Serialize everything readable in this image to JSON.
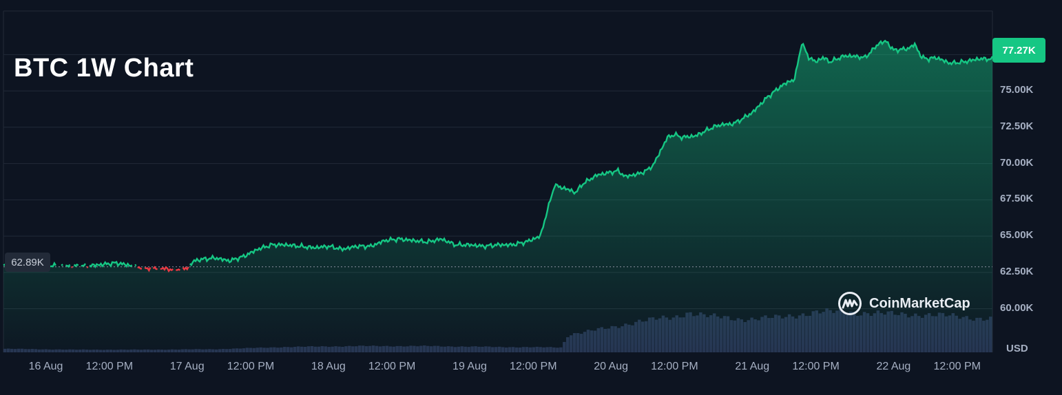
{
  "chart_data": {
    "type": "area",
    "title": "BTC 1W Chart",
    "currency_label": "USD",
    "brand": "CoinMarketCap",
    "current_price_label": "77.27K",
    "reference_price_label": "62.89K",
    "reference_price": 62890,
    "ylim": [
      57000,
      80500
    ],
    "y_ticks": [
      {
        "value": 60000,
        "label": "60.00K"
      },
      {
        "value": 62500,
        "label": "62.50K"
      },
      {
        "value": 65000,
        "label": "65.00K"
      },
      {
        "value": 67500,
        "label": "67.50K"
      },
      {
        "value": 70000,
        "label": "70.00K"
      },
      {
        "value": 72500,
        "label": "72.50K"
      },
      {
        "value": 75000,
        "label": "75.00K"
      }
    ],
    "x_ticks": [
      {
        "t": 0.3,
        "label": "16 Aug"
      },
      {
        "t": 0.75,
        "label": "12:00 PM"
      },
      {
        "t": 1.3,
        "label": "17 Aug"
      },
      {
        "t": 1.75,
        "label": "12:00 PM"
      },
      {
        "t": 2.3,
        "label": "18 Aug"
      },
      {
        "t": 2.75,
        "label": "12:00 PM"
      },
      {
        "t": 3.3,
        "label": "19 Aug"
      },
      {
        "t": 3.75,
        "label": "12:00 PM"
      },
      {
        "t": 4.3,
        "label": "20 Aug"
      },
      {
        "t": 4.75,
        "label": "12:00 PM"
      },
      {
        "t": 5.3,
        "label": "21 Aug"
      },
      {
        "t": 5.75,
        "label": "12:00 PM"
      },
      {
        "t": 6.3,
        "label": "22 Aug"
      },
      {
        "t": 6.75,
        "label": "12:00 PM"
      }
    ],
    "x_range": [
      0,
      7
    ],
    "price": {
      "t": [
        0,
        0.2,
        0.4,
        0.6,
        0.8,
        1.0,
        1.1,
        1.2,
        1.3,
        1.35,
        1.4,
        1.5,
        1.6,
        1.7,
        1.8,
        1.9,
        2.0,
        2.1,
        2.2,
        2.3,
        2.4,
        2.5,
        2.6,
        2.7,
        2.8,
        2.9,
        3.0,
        3.1,
        3.2,
        3.3,
        3.4,
        3.5,
        3.6,
        3.7,
        3.8,
        3.9,
        4.0,
        4.05,
        4.1,
        4.2,
        4.3,
        4.35,
        4.4,
        4.5,
        4.55,
        4.6,
        4.7,
        4.75,
        4.8,
        4.9,
        5.0,
        5.05,
        5.1,
        5.15,
        5.2,
        5.3,
        5.4,
        5.5,
        5.55,
        5.6,
        5.65,
        5.7,
        5.75,
        5.8,
        5.85,
        5.9,
        5.95,
        6.0,
        6.1,
        6.2,
        6.25,
        6.3,
        6.4,
        6.45,
        6.5,
        6.55,
        6.6,
        6.7,
        6.8,
        6.9,
        7.0
      ],
      "values": [
        63000,
        63000,
        62950,
        62950,
        63150,
        62800,
        62800,
        62700,
        62800,
        63300,
        63400,
        63500,
        63300,
        63600,
        64100,
        64400,
        64400,
        64300,
        64200,
        64300,
        64100,
        64300,
        64300,
        64700,
        64800,
        64700,
        64600,
        64800,
        64400,
        64400,
        64300,
        64400,
        64400,
        64600,
        65000,
        68500,
        68200,
        68000,
        68600,
        69200,
        69400,
        69500,
        69100,
        69300,
        69500,
        69900,
        71800,
        72000,
        71800,
        71900,
        72400,
        72600,
        72700,
        72700,
        72900,
        73500,
        74500,
        75300,
        75600,
        75800,
        78300,
        77300,
        77000,
        77300,
        77000,
        77200,
        77400,
        77400,
        77300,
        78300,
        78400,
        77800,
        77900,
        78200,
        77300,
        77200,
        77300,
        76900,
        77000,
        77200,
        77200
      ]
    },
    "volume": {
      "t": [
        0,
        0.5,
        1.0,
        1.5,
        2.0,
        2.5,
        3.0,
        3.5,
        3.95,
        4.0,
        4.3,
        4.5,
        4.75,
        4.85,
        5.0,
        5.2,
        5.3,
        5.5,
        5.75,
        6.0,
        6.3,
        6.5,
        6.75,
        7.0
      ],
      "values": [
        0.08,
        0.06,
        0.06,
        0.07,
        0.12,
        0.14,
        0.14,
        0.12,
        0.11,
        0.4,
        0.55,
        0.7,
        0.78,
        0.9,
        0.8,
        0.75,
        0.75,
        0.78,
        0.9,
        0.9,
        0.85,
        0.85,
        0.8,
        0.75
      ]
    }
  }
}
